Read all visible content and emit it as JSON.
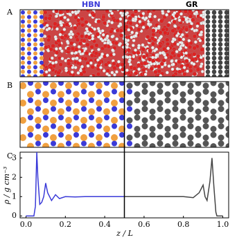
{
  "panels": [
    {
      "label": "A",
      "titles": [
        "HBN",
        "GR"
      ]
    },
    {
      "label": "B"
    }
  ],
  "chart_data": {
    "type": "line",
    "panel_label": "C",
    "xlabel": "z / L",
    "ylabel": "ρ / g cm⁻³",
    "xlim": [
      -0.03,
      1.03
    ],
    "ylim": [
      -0.1,
      3.3
    ],
    "xticks": [
      {
        "value": 0,
        "label": "0.0"
      },
      0.2,
      0.4,
      0.6,
      0.8,
      {
        "value": 1,
        "label": "1.0"
      }
    ],
    "yticks": [
      0,
      1,
      2,
      3
    ],
    "vline": 0.5,
    "series": [
      {
        "color": "#3a3ad8",
        "x": [
          0,
          0.04,
          0.048,
          0.055,
          0.06,
          0.07,
          0.08,
          0.09,
          0.1,
          0.11,
          0.13,
          0.15,
          0.17,
          0.2,
          0.25,
          0.3,
          0.4,
          0.5
        ],
        "values": [
          0,
          0,
          0.5,
          3.3,
          2.0,
          0.6,
          0.7,
          1.0,
          1.7,
          1.2,
          0.8,
          1.1,
          0.9,
          1.0,
          0.98,
          1.0,
          1.0,
          1.0
        ]
      },
      {
        "color": "#444444",
        "x": [
          0.5,
          0.6,
          0.7,
          0.8,
          0.85,
          0.88,
          0.9,
          0.91,
          0.92,
          0.935,
          0.945,
          0.955,
          0.965,
          0.97,
          1.0
        ],
        "values": [
          1.0,
          1.0,
          1.0,
          1.0,
          0.95,
          1.2,
          1.6,
          1.0,
          0.8,
          1.8,
          3.0,
          1.5,
          0.2,
          0,
          0
        ]
      }
    ]
  }
}
